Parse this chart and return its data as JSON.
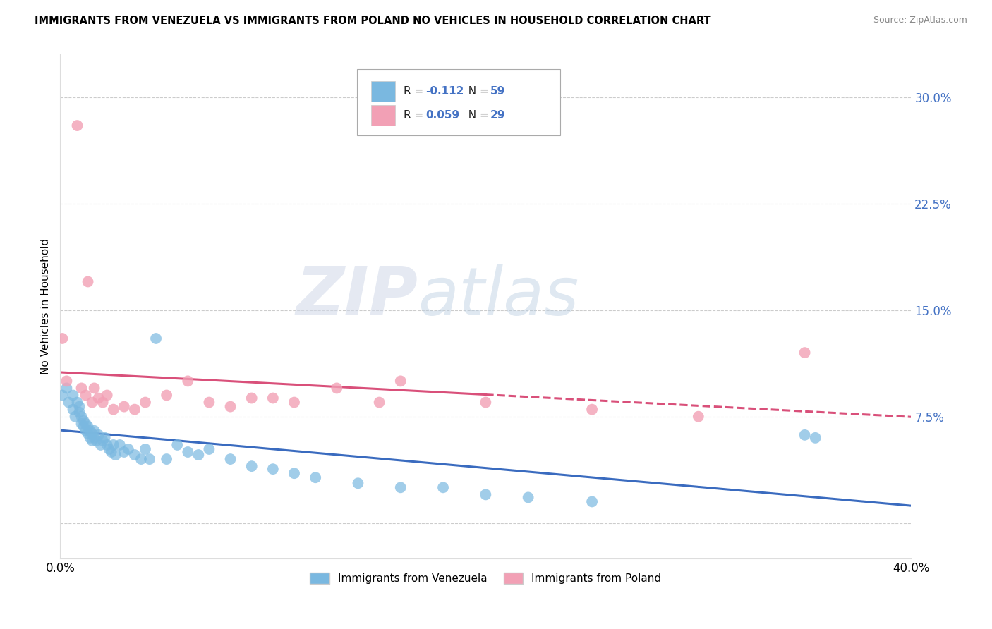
{
  "title": "IMMIGRANTS FROM VENEZUELA VS IMMIGRANTS FROM POLAND NO VEHICLES IN HOUSEHOLD CORRELATION CHART",
  "source": "Source: ZipAtlas.com",
  "ylabel": "No Vehicles in Household",
  "xlim": [
    0.0,
    0.4
  ],
  "ylim": [
    -0.025,
    0.33
  ],
  "yticks": [
    0.0,
    0.075,
    0.15,
    0.225,
    0.3
  ],
  "xticks": [
    0.0,
    0.4
  ],
  "xtick_labels": [
    "0.0%",
    "40.0%"
  ],
  "ytick_right_labels": [
    "",
    "7.5%",
    "15.0%",
    "22.5%",
    "30.0%"
  ],
  "watermark_text": "ZIPatlas",
  "legend_blue_label": "Immigrants from Venezuela",
  "legend_pink_label": "Immigrants from Poland",
  "R_blue": -0.112,
  "N_blue": 59,
  "R_pink": 0.059,
  "N_pink": 29,
  "blue_color": "#7ab8e0",
  "pink_color": "#f2a0b5",
  "line_blue_color": "#3a6bbf",
  "line_pink_color": "#d9507a",
  "venezuela_x": [
    0.001,
    0.003,
    0.004,
    0.006,
    0.006,
    0.007,
    0.008,
    0.009,
    0.009,
    0.01,
    0.01,
    0.011,
    0.011,
    0.012,
    0.012,
    0.013,
    0.013,
    0.014,
    0.014,
    0.015,
    0.015,
    0.016,
    0.016,
    0.017,
    0.018,
    0.019,
    0.02,
    0.021,
    0.022,
    0.023,
    0.024,
    0.025,
    0.026,
    0.028,
    0.03,
    0.032,
    0.035,
    0.038,
    0.04,
    0.042,
    0.045,
    0.05,
    0.055,
    0.06,
    0.065,
    0.07,
    0.08,
    0.09,
    0.1,
    0.11,
    0.12,
    0.14,
    0.16,
    0.18,
    0.2,
    0.22,
    0.25,
    0.35,
    0.355
  ],
  "venezuela_y": [
    0.09,
    0.095,
    0.085,
    0.08,
    0.09,
    0.075,
    0.085,
    0.078,
    0.082,
    0.075,
    0.07,
    0.068,
    0.072,
    0.065,
    0.07,
    0.063,
    0.068,
    0.06,
    0.065,
    0.058,
    0.063,
    0.06,
    0.065,
    0.058,
    0.062,
    0.055,
    0.058,
    0.06,
    0.055,
    0.052,
    0.05,
    0.055,
    0.048,
    0.055,
    0.05,
    0.052,
    0.048,
    0.045,
    0.052,
    0.045,
    0.13,
    0.045,
    0.055,
    0.05,
    0.048,
    0.052,
    0.045,
    0.04,
    0.038,
    0.035,
    0.032,
    0.028,
    0.025,
    0.025,
    0.02,
    0.018,
    0.015,
    0.062,
    0.06
  ],
  "poland_x": [
    0.001,
    0.003,
    0.008,
    0.01,
    0.012,
    0.013,
    0.015,
    0.016,
    0.018,
    0.02,
    0.022,
    0.025,
    0.03,
    0.035,
    0.04,
    0.05,
    0.06,
    0.07,
    0.08,
    0.09,
    0.1,
    0.11,
    0.13,
    0.15,
    0.16,
    0.2,
    0.25,
    0.3,
    0.35
  ],
  "poland_y": [
    0.13,
    0.1,
    0.28,
    0.095,
    0.09,
    0.17,
    0.085,
    0.095,
    0.088,
    0.085,
    0.09,
    0.08,
    0.082,
    0.08,
    0.085,
    0.09,
    0.1,
    0.085,
    0.082,
    0.088,
    0.088,
    0.085,
    0.095,
    0.085,
    0.1,
    0.085,
    0.08,
    0.075,
    0.12
  ]
}
